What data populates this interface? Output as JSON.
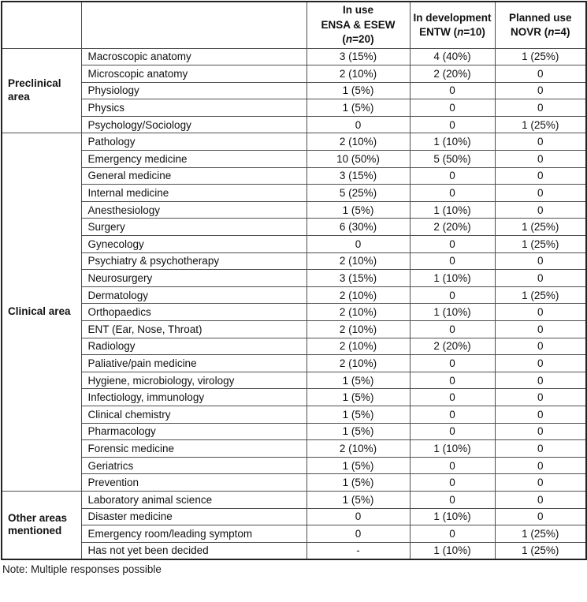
{
  "note": "Note: Multiple responses possible",
  "header": {
    "corner_group": "",
    "corner_area": "",
    "columns": [
      {
        "id": "in-use",
        "lines": [
          [
            {
              "t": "In use"
            }
          ],
          [
            {
              "t": "ENSA & ESEW"
            }
          ],
          [
            {
              "t": "("
            },
            {
              "t": "n",
              "i": true
            },
            {
              "t": "=20)"
            }
          ]
        ]
      },
      {
        "id": "in-development",
        "lines": [
          [
            {
              "t": "In development"
            }
          ],
          [
            {
              "t": "ENTW ("
            },
            {
              "t": "n",
              "i": true
            },
            {
              "t": "=10)"
            }
          ]
        ]
      },
      {
        "id": "planned-use",
        "lines": [
          [
            {
              "t": "Planned use"
            }
          ],
          [
            {
              "t": "NOVR ("
            },
            {
              "t": "n",
              "i": true
            },
            {
              "t": "=4)"
            }
          ]
        ]
      }
    ]
  },
  "groups": [
    {
      "label": "Preclinical area",
      "rows": [
        {
          "area": "Macroscopic anatomy",
          "values": [
            "3 (15%)",
            "4 (40%)",
            "1 (25%)"
          ]
        },
        {
          "area": "Microscopic anatomy",
          "values": [
            "2 (10%)",
            "2 (20%)",
            "0"
          ]
        },
        {
          "area": "Physiology",
          "values": [
            "1 (5%)",
            "0",
            "0"
          ]
        },
        {
          "area": "Physics",
          "values": [
            "1 (5%)",
            "0",
            "0"
          ]
        },
        {
          "area": "Psychology/Sociology",
          "values": [
            "0",
            "0",
            "1 (25%)"
          ]
        }
      ]
    },
    {
      "label": "Clinical area",
      "rows": [
        {
          "area": "Pathology",
          "values": [
            "2 (10%)",
            "1 (10%)",
            "0"
          ]
        },
        {
          "area": "Emergency medicine",
          "values": [
            "10 (50%)",
            "5 (50%)",
            "0"
          ]
        },
        {
          "area": "General medicine",
          "values": [
            "3 (15%)",
            "0",
            "0"
          ]
        },
        {
          "area": "Internal medicine",
          "values": [
            "5 (25%)",
            "0",
            "0"
          ]
        },
        {
          "area": "Anesthesiology",
          "values": [
            "1 (5%)",
            "1 (10%)",
            "0"
          ]
        },
        {
          "area": "Surgery",
          "values": [
            "6 (30%)",
            "2 (20%)",
            "1 (25%)"
          ]
        },
        {
          "area": "Gynecology",
          "values": [
            "0",
            "0",
            "1 (25%)"
          ]
        },
        {
          "area": "Psychiatry & psychotherapy",
          "values": [
            "2 (10%)",
            "0",
            "0"
          ]
        },
        {
          "area": "Neurosurgery",
          "values": [
            "3 (15%)",
            "1 (10%)",
            "0"
          ]
        },
        {
          "area": "Dermatology",
          "values": [
            "2 (10%)",
            "0",
            "1 (25%)"
          ]
        },
        {
          "area": "Orthopaedics",
          "values": [
            "2 (10%)",
            "1 (10%)",
            "0"
          ]
        },
        {
          "area": "ENT (Ear, Nose, Throat)",
          "values": [
            "2 (10%)",
            "0",
            "0"
          ]
        },
        {
          "area": "Radiology",
          "values": [
            "2 (10%)",
            "2 (20%)",
            "0"
          ]
        },
        {
          "area": "Paliative/pain medicine",
          "values": [
            "2 (10%)",
            "0",
            "0"
          ]
        },
        {
          "area": "Hygiene, microbiology, virology",
          "values": [
            "1 (5%)",
            "0",
            "0"
          ]
        },
        {
          "area": "Infectiology, immunology",
          "values": [
            "1 (5%)",
            "0",
            "0"
          ]
        },
        {
          "area": "Clinical chemistry",
          "values": [
            "1 (5%)",
            "0",
            "0"
          ]
        },
        {
          "area": "Pharmacology",
          "values": [
            "1 (5%)",
            "0",
            "0"
          ]
        },
        {
          "area": "Forensic medicine",
          "values": [
            "2 (10%)",
            "1 (10%)",
            "0"
          ]
        },
        {
          "area": "Geriatrics",
          "values": [
            "1 (5%)",
            "0",
            "0"
          ]
        },
        {
          "area": "Prevention",
          "values": [
            "1 (5%)",
            "0",
            "0"
          ]
        }
      ]
    },
    {
      "label": "Other areas mentioned",
      "rows": [
        {
          "area": "Laboratory animal science",
          "values": [
            "1 (5%)",
            "0",
            "0"
          ]
        },
        {
          "area": "Disaster medicine",
          "values": [
            "0",
            "1 (10%)",
            "0"
          ]
        },
        {
          "area": "Emergency room/leading symptom",
          "values": [
            "0",
            "0",
            "1 (25%)"
          ]
        },
        {
          "area": "Has not yet been decided",
          "values": [
            "-",
            "1 (10%)",
            "1 (25%)"
          ]
        }
      ]
    }
  ]
}
